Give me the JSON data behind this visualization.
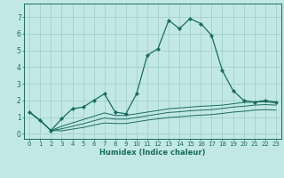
{
  "xlabel": "Humidex (Indice chaleur)",
  "xlim": [
    -0.5,
    23.5
  ],
  "ylim": [
    -0.3,
    7.8
  ],
  "xticks": [
    0,
    1,
    2,
    3,
    4,
    5,
    6,
    7,
    8,
    9,
    10,
    11,
    12,
    13,
    14,
    15,
    16,
    17,
    18,
    19,
    20,
    21,
    22,
    23
  ],
  "yticks": [
    0,
    1,
    2,
    3,
    4,
    5,
    6,
    7
  ],
  "bg_color": "#c2e8e5",
  "grid_color": "#9bccc8",
  "line_color": "#1a6b60",
  "series": [
    [
      1.3,
      0.8,
      0.2,
      0.9,
      1.5,
      1.6,
      2.0,
      2.4,
      1.3,
      1.2,
      2.4,
      4.7,
      5.1,
      6.8,
      6.3,
      6.9,
      6.6,
      5.9,
      3.8,
      2.6,
      2.0,
      1.9,
      2.0,
      1.9
    ],
    [
      1.3,
      0.8,
      0.2,
      0.45,
      0.65,
      0.85,
      1.05,
      1.25,
      1.1,
      1.1,
      1.2,
      1.3,
      1.4,
      1.5,
      1.55,
      1.6,
      1.65,
      1.68,
      1.72,
      1.8,
      1.88,
      1.9,
      1.92,
      1.85
    ],
    [
      1.3,
      0.8,
      0.2,
      0.3,
      0.45,
      0.6,
      0.78,
      0.95,
      0.88,
      0.88,
      0.98,
      1.08,
      1.18,
      1.28,
      1.32,
      1.38,
      1.42,
      1.45,
      1.52,
      1.6,
      1.65,
      1.72,
      1.75,
      1.72
    ],
    [
      1.3,
      0.8,
      0.2,
      0.18,
      0.28,
      0.38,
      0.52,
      0.65,
      0.62,
      0.62,
      0.72,
      0.82,
      0.9,
      0.98,
      1.02,
      1.08,
      1.12,
      1.15,
      1.22,
      1.3,
      1.35,
      1.42,
      1.45,
      1.42
    ]
  ]
}
